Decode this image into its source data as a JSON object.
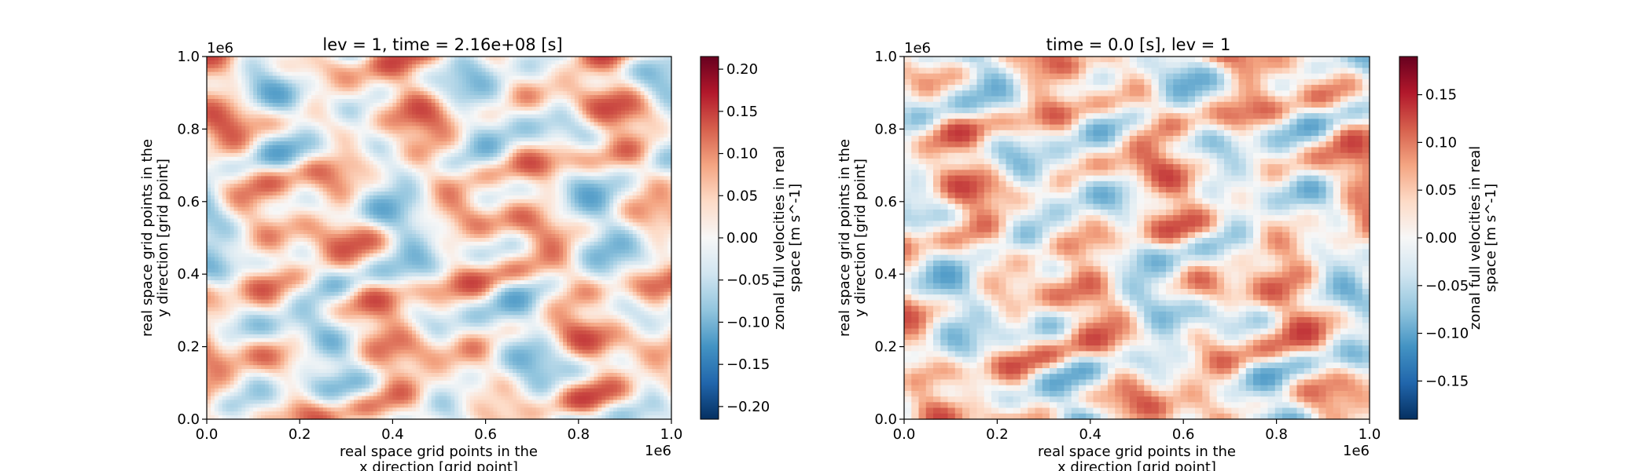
{
  "chart_data": [
    {
      "type": "heatmap",
      "title": "lev = 1, time = 2.16e+08 [s]",
      "xlabel": [
        "real space grid points in the",
        "x direction [grid point]"
      ],
      "ylabel": [
        "real space grid points in the",
        "y direction [grid point]"
      ],
      "xlim": [
        0,
        1.0
      ],
      "ylim": [
        0,
        1.0
      ],
      "xticks": [
        "0.0",
        "0.2",
        "0.4",
        "0.6",
        "0.8",
        "1.0"
      ],
      "yticks": [
        "0.0",
        "0.2",
        "0.4",
        "0.6",
        "0.8",
        "1.0"
      ],
      "x_offset_text": "1e6",
      "y_offset_text": "1e6",
      "colormap": "RdBu_r",
      "colorbar": {
        "label": [
          "zonal full velocities in real",
          "space [m s^-1]"
        ],
        "range": [
          -0.215,
          0.215
        ],
        "ticks": [
          -0.2,
          -0.15,
          -0.1,
          -0.05,
          0.0,
          0.05,
          0.1,
          0.15,
          0.2
        ],
        "tick_labels": [
          "−0.20",
          "−0.15",
          "−0.10",
          "−0.05",
          "0.00",
          "0.05",
          "0.10",
          "0.15",
          "0.20"
        ]
      },
      "grid": false,
      "texture": "smooth"
    },
    {
      "type": "heatmap",
      "title": "time = 0.0 [s], lev = 1",
      "xlabel": [
        "real space grid points in the",
        "x direction [grid point]"
      ],
      "ylabel": [
        "real space grid points in the",
        "y direction [grid point]"
      ],
      "xlim": [
        0,
        1.0
      ],
      "ylim": [
        0,
        1.0
      ],
      "xticks": [
        "0.0",
        "0.2",
        "0.4",
        "0.6",
        "0.8",
        "1.0"
      ],
      "yticks": [
        "0.0",
        "0.2",
        "0.4",
        "0.6",
        "0.8",
        "1.0"
      ],
      "x_offset_text": "1e6",
      "y_offset_text": "1e6",
      "colormap": "RdBu_r",
      "colorbar": {
        "label": [
          "zonal full velocities in real",
          "space [m s^-1]"
        ],
        "range": [
          -0.19,
          0.19
        ],
        "ticks": [
          -0.15,
          -0.1,
          -0.05,
          0.0,
          0.05,
          0.1,
          0.15
        ],
        "tick_labels": [
          "−0.15",
          "−0.10",
          "−0.05",
          "0.00",
          "0.05",
          "0.10",
          "0.15"
        ]
      },
      "grid": false,
      "texture": "pixelated"
    }
  ]
}
